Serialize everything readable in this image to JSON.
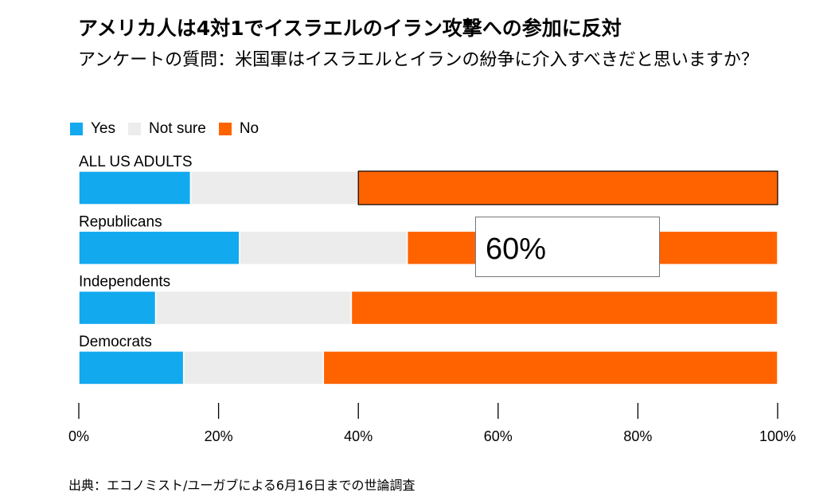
{
  "title": "アメリカ人は4対1でイスラエルのイラン攻撃への参加に反対",
  "subtitle": "アンケートの質問：米国軍はイスラエルとイランの紛争に介入すべきだと思いますか？",
  "source": "出典：エコノミスト/ユーガブによる6月16日までの世論調査",
  "tooltip": {
    "value": "60%"
  },
  "colors": {
    "yes": "#12a9ef",
    "not_sure": "#ececec",
    "no": "#ff6300"
  },
  "chart_data": {
    "type": "bar",
    "orientation": "horizontal",
    "stacked": true,
    "categories": [
      "ALL US ADULTS",
      "Republicans",
      "Independents",
      "Democrats"
    ],
    "series": [
      {
        "name": "Yes",
        "values": [
          16,
          23,
          11,
          15
        ]
      },
      {
        "name": "Not sure",
        "values": [
          24,
          24,
          28,
          20
        ]
      },
      {
        "name": "No",
        "values": [
          60,
          53,
          61,
          65
        ]
      }
    ],
    "xlim": [
      0,
      100
    ],
    "x_ticks": [
      "0%",
      "20%",
      "40%",
      "60%",
      "80%",
      "100%"
    ],
    "x_tick_values": [
      0,
      20,
      40,
      60,
      80,
      100
    ],
    "legend_position": "top-left",
    "grid": false,
    "highlighted": {
      "category": "ALL US ADULTS",
      "series": "No",
      "label": "60%"
    }
  }
}
